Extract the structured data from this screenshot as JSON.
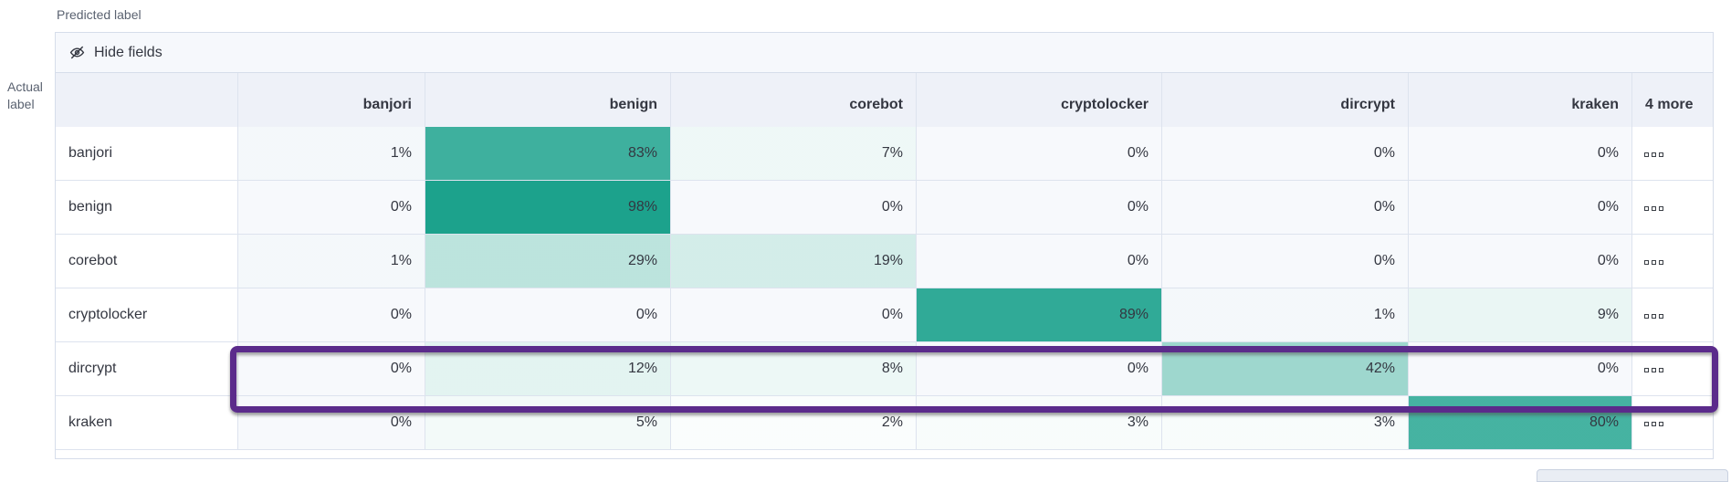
{
  "axes": {
    "predicted_label": "Predicted label",
    "actual_label": "Actual label"
  },
  "toolbar": {
    "hide_fields_label": "Hide fields",
    "hide_fields_icon": "eye-closed-icon"
  },
  "matrix": {
    "columns": [
      "banjori",
      "benign",
      "corebot",
      "cryptolocker",
      "dircrypt",
      "kraken"
    ],
    "more_label": "4 more",
    "rows": [
      {
        "label": "banjori",
        "values_percent": [
          1,
          83,
          7,
          0,
          0,
          0
        ],
        "highlighted": false
      },
      {
        "label": "benign",
        "values_percent": [
          0,
          98,
          0,
          0,
          0,
          0
        ],
        "highlighted": false
      },
      {
        "label": "corebot",
        "values_percent": [
          1,
          29,
          19,
          0,
          0,
          0
        ],
        "highlighted": false
      },
      {
        "label": "cryptolocker",
        "values_percent": [
          0,
          0,
          0,
          89,
          1,
          9
        ],
        "highlighted": false
      },
      {
        "label": "dircrypt",
        "values_percent": [
          0,
          12,
          8,
          0,
          42,
          0
        ],
        "highlighted": true
      },
      {
        "label": "kraken",
        "values_percent": [
          0,
          5,
          2,
          3,
          3,
          80
        ],
        "highlighted": false
      }
    ],
    "row_actions_icon": "boxes-horizontal-icon",
    "value_suffix": "%"
  },
  "colors": {
    "heat_base_rgb": "23,160,138",
    "zero_cell_bg": "#f7f9fc",
    "header_bg": "#eef1f8",
    "toolbar_bg": "#f6f8fc",
    "grid_border": "#dde3ee",
    "text": "#343741",
    "muted_text": "#5a6270",
    "highlight_border": "#5b2b8b"
  },
  "chart_data": {
    "type": "heatmap",
    "title": "Confusion matrix (normalized %)",
    "xlabel": "Predicted label",
    "ylabel": "Actual label",
    "x_categories": [
      "banjori",
      "benign",
      "corebot",
      "cryptolocker",
      "dircrypt",
      "kraken"
    ],
    "y_categories": [
      "banjori",
      "benign",
      "corebot",
      "cryptolocker",
      "dircrypt",
      "kraken"
    ],
    "values_percent": [
      [
        1,
        83,
        7,
        0,
        0,
        0
      ],
      [
        0,
        98,
        0,
        0,
        0,
        0
      ],
      [
        1,
        29,
        19,
        0,
        0,
        0
      ],
      [
        0,
        0,
        0,
        89,
        1,
        9
      ],
      [
        0,
        12,
        8,
        0,
        42,
        0
      ],
      [
        0,
        5,
        2,
        3,
        3,
        80
      ]
    ],
    "hidden_columns_count": 4,
    "legend_position": "none",
    "annotation": "purple box highlighting actual-label row dircrypt"
  }
}
